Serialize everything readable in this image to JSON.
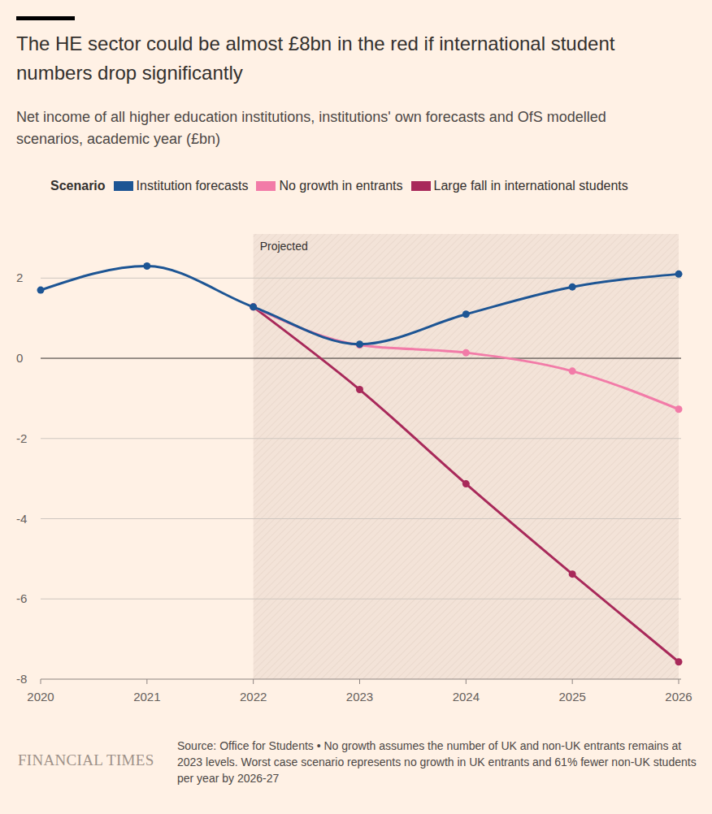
{
  "chart_data": {
    "type": "line",
    "title": "The HE sector could be almost £8bn in the red if international student numbers drop significantly",
    "subtitle": "Net income of all higher education institutions, institutions' own forecasts and OfS modelled scenarios, academic year (£bn)",
    "legend_title": "Scenario",
    "x": [
      2020,
      2021,
      2022,
      2023,
      2024,
      2025,
      2026
    ],
    "series": [
      {
        "name": "Institution forecasts",
        "color": "#1d5594",
        "marker": "circle",
        "values": [
          1.7,
          2.3,
          1.28,
          0.35,
          1.1,
          1.78,
          2.1
        ]
      },
      {
        "name": "No growth in entrants",
        "color": "#f27ba8",
        "marker": "circle",
        "values": [
          null,
          null,
          1.28,
          0.33,
          0.14,
          -0.32,
          -1.27
        ]
      },
      {
        "name": "Large fall in international students",
        "color": "#a8295a",
        "marker": "circle",
        "values": [
          null,
          null,
          1.28,
          -0.78,
          -3.13,
          -5.38,
          -7.57
        ]
      }
    ],
    "xlim": [
      2020,
      2026
    ],
    "xticks": [
      2020,
      2021,
      2022,
      2023,
      2024,
      2025,
      2026
    ],
    "ylim": [
      -8,
      3.1
    ],
    "yticks": [
      -8,
      -6,
      -4,
      -2,
      0,
      2
    ],
    "grid": true,
    "legend": "top",
    "annotations": [
      {
        "text": "Projected",
        "x_start": 2022,
        "x_end": 2026
      }
    ],
    "source": "Source: Office for Students • No growth assumes the number of UK and non-UK entrants remains at 2023 levels. Worst case scenario represents no growth in UK entrants and 61% fewer non-UK students per year by 2026-27",
    "brand": "FINANCIAL TIMES"
  }
}
